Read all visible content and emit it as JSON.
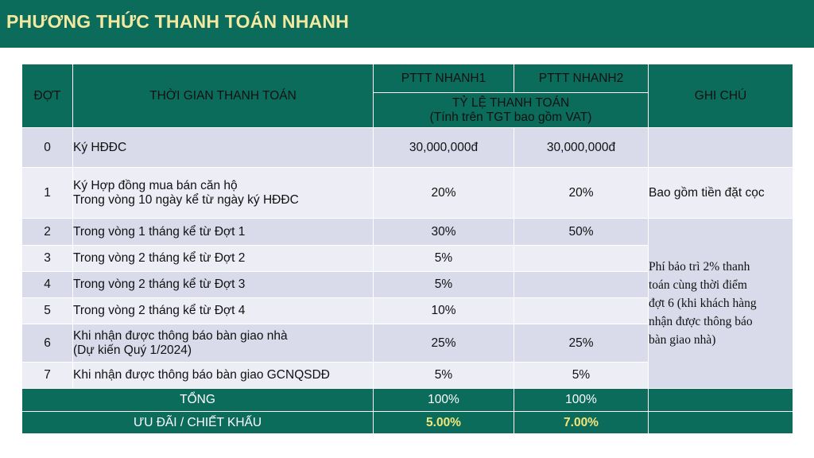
{
  "title": "PHƯƠNG THỨC THANH TOÁN NHANH",
  "header": {
    "dot": "ĐỢT",
    "time": "THỜI GIAN THANH TOÁN",
    "plan1": "PTTT NHANH1",
    "plan2": "PTTT NHANH2",
    "rate_line1": "TỶ LỆ THANH TOÁN",
    "rate_line2": "(Tính trên TGT bao gồm VAT)",
    "note": "GHI CHÚ"
  },
  "rows": [
    {
      "dot": "0",
      "desc": [
        "Ký HĐĐC"
      ],
      "p1": "30,000,000đ",
      "p2": "30,000,000đ"
    },
    {
      "dot": "1",
      "desc": [
        "Ký Hợp đồng mua bán căn hộ",
        "Trong vòng 10 ngày kể từ ngày ký HĐĐC"
      ],
      "p1": "20%",
      "p2": "20%"
    },
    {
      "dot": "2",
      "desc": [
        "Trong vòng 1 tháng kể từ Đợt 1"
      ],
      "p1": "30%",
      "p2": "50%"
    },
    {
      "dot": "3",
      "desc": [
        "Trong vòng 2 tháng kể từ Đợt 2"
      ],
      "p1": "5%",
      "p2": ""
    },
    {
      "dot": "4",
      "desc": [
        "Trong vòng 2 tháng kể từ Đợt 3"
      ],
      "p1": "5%",
      "p2": ""
    },
    {
      "dot": "5",
      "desc": [
        "Trong vòng 2 tháng kể từ Đợt 4"
      ],
      "p1": "10%",
      "p2": ""
    },
    {
      "dot": "6",
      "desc": [
        "Khi nhận được thông báo bàn giao nhà",
        "(Dự kiến Quý 1/2024)"
      ],
      "p1": "25%",
      "p2": "25%"
    },
    {
      "dot": "7",
      "desc": [
        "Khi nhận được thông báo bàn giao GCNQSDĐ"
      ],
      "p1": "5%",
      "p2": "5%"
    }
  ],
  "notes": {
    "row1": "Bao gồm tiền đặt cọc",
    "rows2to7": [
      "Phí bảo trì 2% thanh",
      "toán cùng thời điểm",
      "đợt 6 (khi khách hàng",
      "nhận được thông báo",
      "bàn giao nhà)"
    ]
  },
  "total": {
    "label": "TỔNG",
    "p1": "100%",
    "p2": "100%"
  },
  "discount": {
    "label": "ƯU ĐÃI / CHIẾT KHẤU",
    "p1": "5.00%",
    "p2": "7.00%"
  }
}
